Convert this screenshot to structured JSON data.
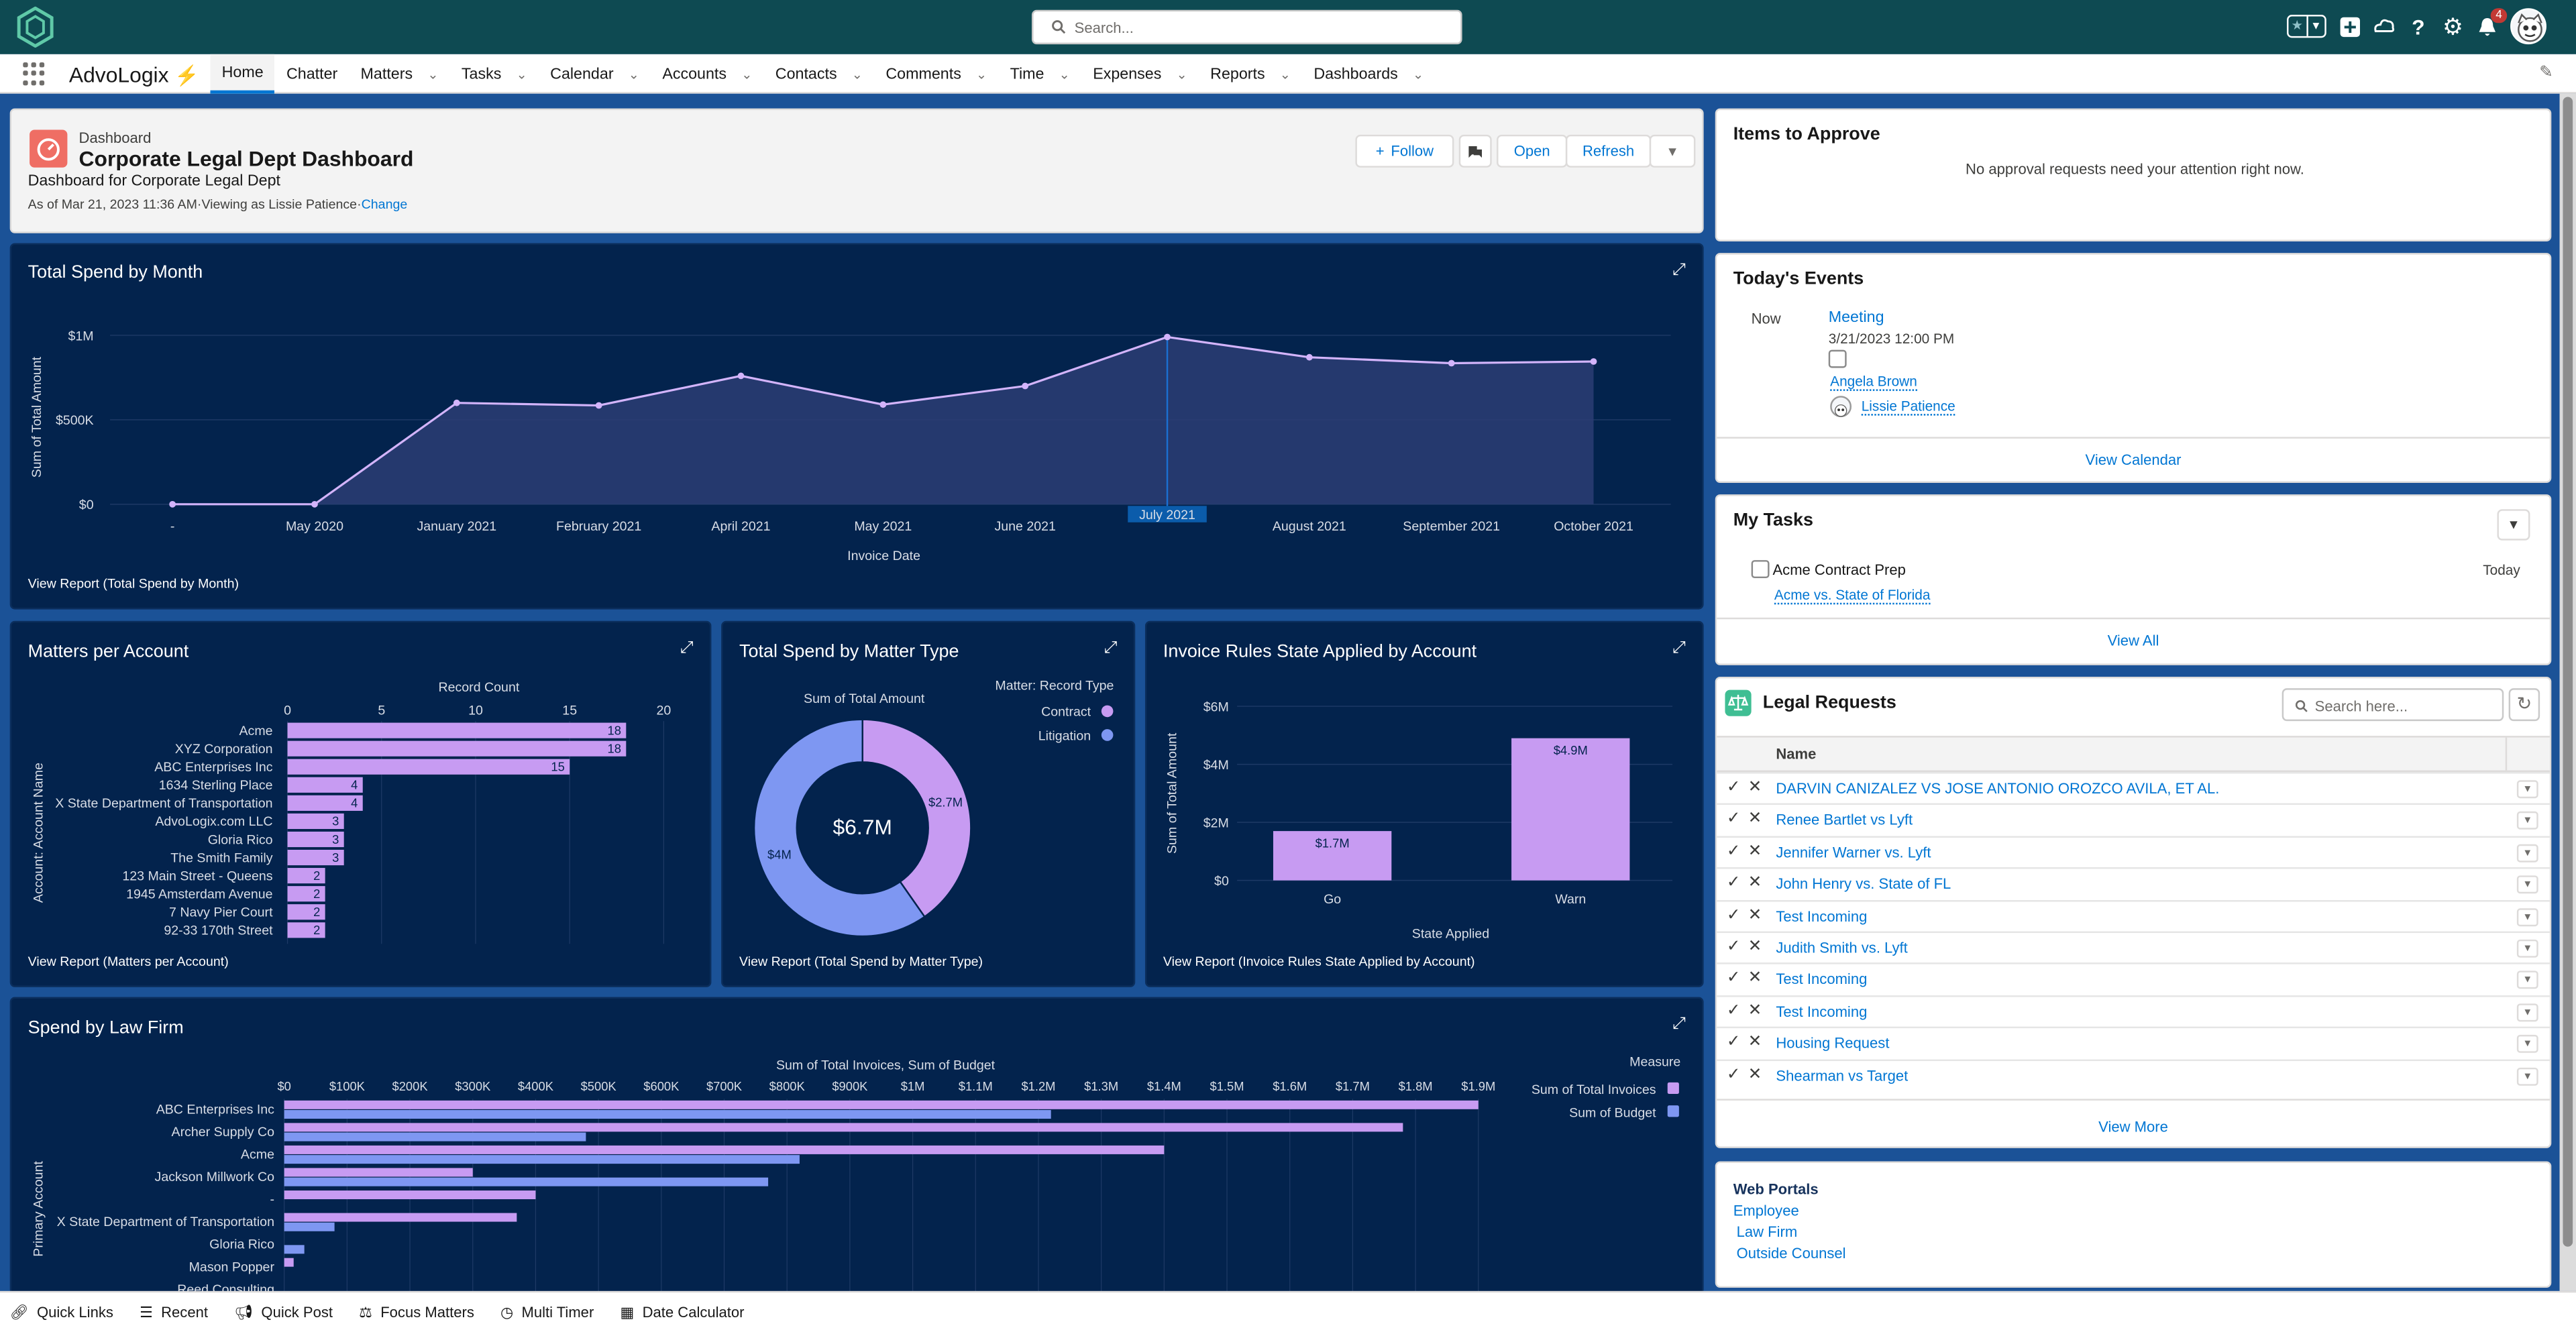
{
  "app": {
    "name": "AdvoLogix",
    "search_placeholder": "Search...",
    "notification_count": "4",
    "nav_items": [
      "Home",
      "Chatter",
      "Matters",
      "Tasks",
      "Calendar",
      "Accounts",
      "Contacts",
      "Comments",
      "Time",
      "Expenses",
      "Reports",
      "Dashboards"
    ]
  },
  "dashboard": {
    "type_label": "Dashboard",
    "title": "Corporate Legal Dept Dashboard",
    "subtitle": "Dashboard for Corporate Legal Dept",
    "as_of": "As of Mar 21, 2023 11:36 AM·Viewing as Lissie Patience·",
    "change_link": "Change",
    "buttons": {
      "follow": "Follow",
      "open": "Open",
      "refresh": "Refresh"
    }
  },
  "charts": {
    "spend_by_month": {
      "title": "Total Spend by Month",
      "view_report": "View Report (Total Spend by Month)",
      "ylabel": "Sum of Total Amount",
      "xlabel": "Invoice Date",
      "y_ticks": [
        "$1M",
        "$500K",
        "$0"
      ],
      "highlight": "July 2021"
    },
    "matters_per_account": {
      "title": "Matters per Account",
      "view_report": "View Report (Matters per Account)",
      "axis_title": "Record Count",
      "ylabel": "Account: Account Name",
      "ticks": [
        "0",
        "5",
        "10",
        "15",
        "20"
      ]
    },
    "spend_by_matter_type": {
      "title": "Total Spend by Matter Type",
      "view_report": "View Report (Total Spend by Matter Type)",
      "measure": "Sum of Total Amount",
      "total": "$6.7M",
      "legend_title": "Matter: Record Type",
      "slice_labels": [
        "$2.7M",
        "$4M"
      ]
    },
    "invoice_rules": {
      "title": "Invoice Rules State Applied by Account",
      "view_report": "View Report (Invoice Rules State Applied by Account)",
      "ylabel": "Sum of Total Amount",
      "xlabel": "State Applied",
      "y_ticks": [
        "$6M",
        "$4M",
        "$2M",
        "$0"
      ],
      "bar_labels": [
        "$1.7M",
        "$4.9M"
      ]
    },
    "spend_by_law_firm": {
      "title": "Spend by Law Firm",
      "axis_title": "Sum of Total Invoices, Sum of Budget",
      "ylabel": "Primary Account",
      "legend_title": "Measure",
      "ticks": [
        "$0",
        "$100K",
        "$200K",
        "$300K",
        "$400K",
        "$500K",
        "$600K",
        "$700K",
        "$800K",
        "$900K",
        "$1M",
        "$1.1M",
        "$1.2M",
        "$1.3M",
        "$1.4M",
        "$1.5M",
        "$1.6M",
        "$1.7M",
        "$1.8M",
        "$1.9M"
      ]
    }
  },
  "chart_data": [
    {
      "type": "area",
      "title": "Total Spend by Month",
      "xlabel": "Invoice Date",
      "ylabel": "Sum of Total Amount",
      "categories": [
        "-",
        "May 2020",
        "January 2021",
        "February 2021",
        "April 2021",
        "May 2021",
        "June 2021",
        "July 2021",
        "August 2021",
        "September 2021",
        "October 2021"
      ],
      "values": [
        0,
        0,
        600000,
        585000,
        760000,
        590000,
        700000,
        990000,
        870000,
        835000,
        845000
      ],
      "ylim": [
        0,
        1050000
      ],
      "color": "#d3b4fb"
    },
    {
      "type": "bar",
      "orientation": "horizontal",
      "title": "Matters per Account",
      "xlabel": "Record Count",
      "ylabel": "Account: Account Name",
      "categories": [
        "Acme",
        "XYZ Corporation",
        "ABC Enterprises Inc",
        "1634 Sterling Place",
        "X State Department of Transportation",
        "AdvoLogix.com LLC",
        "Gloria Rico",
        "The Smith Family",
        "123 Main Street - Queens",
        "1945 Amsterdam Avenue",
        "7 Navy Pier Court",
        "92-33 170th Street"
      ],
      "values": [
        18,
        18,
        15,
        4,
        4,
        3,
        3,
        3,
        2,
        2,
        2,
        2
      ],
      "xlim": [
        0,
        20
      ],
      "color": "#c79bf2"
    },
    {
      "type": "pie",
      "donut": true,
      "title": "Total Spend by Matter Type",
      "measure": "Sum of Total Amount",
      "total": "$6.7M",
      "legend_title": "Matter: Record Type",
      "series": [
        {
          "name": "Contract",
          "value": 2.7,
          "label": "$2.7M",
          "color": "#c79bf2"
        },
        {
          "name": "Litigation",
          "value": 4.0,
          "label": "$4M",
          "color": "#7e97f2"
        }
      ]
    },
    {
      "type": "bar",
      "title": "Invoice Rules State Applied by Account",
      "xlabel": "State Applied",
      "ylabel": "Sum of Total Amount",
      "categories": [
        "Go",
        "Warn"
      ],
      "values": [
        1.7,
        4.9
      ],
      "labels": [
        "$1.7M",
        "$4.9M"
      ],
      "ylim": [
        0,
        6
      ],
      "color": "#c79bf2"
    },
    {
      "type": "bar",
      "orientation": "horizontal",
      "title": "Spend by Law Firm",
      "xlabel": "Sum of Total Invoices, Sum of Budget",
      "ylabel": "Primary Account",
      "categories": [
        "ABC Enterprises Inc",
        "Archer Supply Co",
        "Acme",
        "Jackson Millwork Co",
        "-",
        "X State Department of Transportation",
        "Gloria Rico",
        "Mason Popper",
        "Reed Consulting"
      ],
      "series": [
        {
          "name": "Sum of Total Invoices",
          "color": "#c79bf2",
          "values": [
            1900000,
            1780000,
            1400000,
            300000,
            400000,
            370000,
            0,
            15000,
            0
          ]
        },
        {
          "name": "Sum of Budget",
          "color": "#7e97f2",
          "values": [
            1220000,
            480000,
            820000,
            770000,
            0,
            80000,
            32000,
            0,
            0
          ]
        }
      ],
      "xlim": [
        0,
        1950000
      ]
    }
  ],
  "right": {
    "approve": {
      "title": "Items to Approve",
      "empty": "No approval requests need your attention right now."
    },
    "events": {
      "title": "Today's Events",
      "when": "Now",
      "event_name": "Meeting",
      "event_time": "3/21/2023 12:00 PM",
      "contact": "Angela Brown",
      "owner": "Lissie Patience",
      "view_calendar": "View Calendar"
    },
    "tasks": {
      "title": "My Tasks",
      "task": "Acme Contract Prep",
      "related": "Acme vs. State of Florida",
      "due": "Today",
      "view_all": "View All"
    },
    "legal": {
      "title": "Legal Requests",
      "search_placeholder": "Search here...",
      "col_name": "Name",
      "rows": [
        "DARVIN CANIZALEZ VS JOSE ANTONIO OROZCO AVILA, ET AL.",
        "Renee Bartlet vs Lyft",
        "Jennifer Warner vs. Lyft",
        "John Henry vs. State of FL",
        "Test Incoming",
        "Judith Smith vs. Lyft",
        "Test Incoming",
        "Test Incoming",
        "Housing Request",
        "Shearman vs Target"
      ],
      "view_more": "View More"
    },
    "portals": {
      "title": "Web Portals",
      "links": [
        "Employee",
        "Law Firm",
        "Outside Counsel"
      ]
    }
  },
  "utility": [
    "Quick Links",
    "Recent",
    "Quick Post",
    "Focus Matters",
    "Multi Timer",
    "Date Calculator"
  ]
}
